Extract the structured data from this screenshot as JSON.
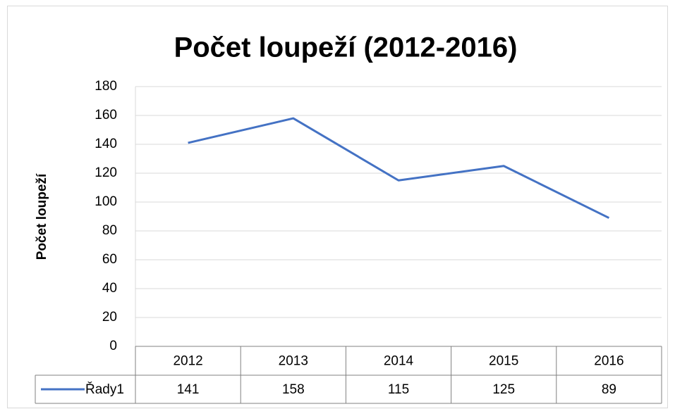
{
  "chart_data": {
    "type": "line",
    "title": "Počet loupeží (2012-2016)",
    "y_label": "Počet loupeží",
    "categories": [
      "2012",
      "2013",
      "2014",
      "2015",
      "2016"
    ],
    "series": [
      {
        "name": "Řady1",
        "color": "#4472c4",
        "values": [
          141,
          158,
          115,
          125,
          89
        ]
      }
    ],
    "ylim": [
      0,
      180
    ],
    "yticks": [
      0,
      20,
      40,
      60,
      80,
      100,
      120,
      140,
      160,
      180
    ],
    "grid": true,
    "data_table": true
  }
}
